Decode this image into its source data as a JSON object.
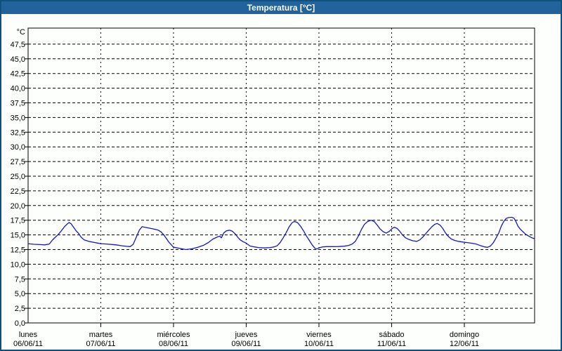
{
  "window": {
    "title": "Temperatura [°C]"
  },
  "colors": {
    "titlebar_bg": "#21639a",
    "titlebar_text": "#ffffff",
    "outer_border": "#10507d",
    "background": "#fdfffc",
    "plot_border": "#000000",
    "grid": "#000000",
    "label_text": "#000000",
    "line": "#1616c8"
  },
  "chart_data": {
    "type": "line",
    "title": "Temperatura [°C]",
    "grid": "dashed",
    "legend": "none",
    "y_axis": {
      "unit_label": "°C",
      "min": 0,
      "max": 49.5,
      "tick_step": 2.5,
      "decimal_style": "comma",
      "tick_labels_bottom_up": [
        "0,0",
        "2,5",
        "5,0",
        "7,5",
        "10,0",
        "12,5",
        "15,0",
        "17,5",
        "20,0",
        "22,5",
        "25,0",
        "27,5",
        "30,0",
        "32,5",
        "35,0",
        "37,5",
        "40,0",
        "42,5",
        "45,0",
        "47,5"
      ]
    },
    "x_axis": {
      "unit": "hours from lunes 00:00, one gridline per day boundary",
      "hours_span": [
        0,
        167.2
      ],
      "days": [
        {
          "name": "lunes",
          "date": "06/06/11"
        },
        {
          "name": "martes",
          "date": "07/06/11"
        },
        {
          "name": "miércoles",
          "date": "08/06/11"
        },
        {
          "name": "jueves",
          "date": "09/06/11"
        },
        {
          "name": "viernes",
          "date": "10/06/11"
        },
        {
          "name": "sábado",
          "date": "11/06/11"
        },
        {
          "name": "domingo",
          "date": "12/06/11"
        }
      ]
    },
    "series": [
      {
        "name": "Temperatura",
        "unit": "°C",
        "points": [
          [
            0,
            13.5
          ],
          [
            2,
            13.4
          ],
          [
            4,
            13.35
          ],
          [
            5.5,
            13.3
          ],
          [
            7,
            13.45
          ],
          [
            8,
            14.1
          ],
          [
            9,
            14.6
          ],
          [
            10,
            15.1
          ],
          [
            11,
            15.7
          ],
          [
            12,
            16.4
          ],
          [
            13,
            16.9
          ],
          [
            13.5,
            17.1
          ],
          [
            14.2,
            16.9
          ],
          [
            15,
            16.3
          ],
          [
            16,
            15.6
          ],
          [
            16.6,
            15.3
          ],
          [
            17.5,
            14.6
          ],
          [
            18.5,
            14.15
          ],
          [
            20,
            13.9
          ],
          [
            22,
            13.7
          ],
          [
            23,
            13.6
          ],
          [
            24,
            13.5
          ],
          [
            26,
            13.45
          ],
          [
            29,
            13.3
          ],
          [
            31,
            13.15
          ],
          [
            32.5,
            13.05
          ],
          [
            33.7,
            13.0
          ],
          [
            34.7,
            13.4
          ],
          [
            35.7,
            14.6
          ],
          [
            36.7,
            15.8
          ],
          [
            37.6,
            16.4
          ],
          [
            39,
            16.25
          ],
          [
            40.5,
            16.1
          ],
          [
            42,
            15.95
          ],
          [
            43,
            15.8
          ],
          [
            43.9,
            15.5
          ],
          [
            44.8,
            15.0
          ],
          [
            45.6,
            14.4
          ],
          [
            46.5,
            13.75
          ],
          [
            47.2,
            13.35
          ],
          [
            47.8,
            13.0
          ],
          [
            48.2,
            12.9
          ],
          [
            50,
            12.7
          ],
          [
            52,
            12.5
          ],
          [
            54,
            12.62
          ],
          [
            56,
            12.9
          ],
          [
            58,
            13.25
          ],
          [
            59.5,
            13.7
          ],
          [
            61,
            14.3
          ],
          [
            62.5,
            14.65
          ],
          [
            63.2,
            14.78
          ],
          [
            63.8,
            14.5
          ],
          [
            64.6,
            15.35
          ],
          [
            65.5,
            15.7
          ],
          [
            66.5,
            15.8
          ],
          [
            67.4,
            15.62
          ],
          [
            68.4,
            15.15
          ],
          [
            69.2,
            14.6
          ],
          [
            70,
            14.15
          ],
          [
            70.9,
            13.85
          ],
          [
            71.9,
            13.62
          ],
          [
            72.6,
            13.35
          ],
          [
            73.3,
            13.1
          ],
          [
            74.2,
            13.0
          ],
          [
            76,
            12.85
          ],
          [
            78,
            12.78
          ],
          [
            80,
            12.85
          ],
          [
            81.2,
            12.95
          ],
          [
            82.2,
            13.15
          ],
          [
            83.2,
            13.7
          ],
          [
            84.2,
            14.5
          ],
          [
            85.2,
            15.4
          ],
          [
            86.2,
            16.4
          ],
          [
            87.1,
            17.05
          ],
          [
            87.9,
            17.3
          ],
          [
            88.9,
            17.1
          ],
          [
            89.9,
            16.5
          ],
          [
            90.9,
            15.7
          ],
          [
            91.9,
            14.8
          ],
          [
            92.9,
            14.0
          ],
          [
            93.9,
            13.2
          ],
          [
            94.7,
            12.72
          ],
          [
            95.3,
            12.6
          ],
          [
            96.2,
            12.82
          ],
          [
            97.2,
            12.95
          ],
          [
            98.5,
            13.0
          ],
          [
            100.5,
            13.0
          ],
          [
            102.5,
            13.02
          ],
          [
            104.3,
            13.08
          ],
          [
            105.8,
            13.2
          ],
          [
            107,
            13.45
          ],
          [
            108,
            13.9
          ],
          [
            109,
            14.8
          ],
          [
            110,
            15.9
          ],
          [
            111,
            16.8
          ],
          [
            112,
            17.25
          ],
          [
            113.2,
            17.5
          ],
          [
            114.3,
            17.25
          ],
          [
            115.2,
            16.7
          ],
          [
            116.2,
            16.0
          ],
          [
            117.2,
            15.55
          ],
          [
            118.2,
            15.3
          ],
          [
            119.2,
            15.6
          ],
          [
            120.2,
            16.1
          ],
          [
            120.9,
            16.3
          ],
          [
            121.8,
            16.1
          ],
          [
            122.7,
            15.6
          ],
          [
            123.6,
            15.0
          ],
          [
            124.6,
            14.5
          ],
          [
            125.8,
            14.2
          ],
          [
            127,
            14.0
          ],
          [
            128.3,
            13.9
          ],
          [
            129.3,
            14.15
          ],
          [
            130.4,
            14.7
          ],
          [
            131.4,
            15.3
          ],
          [
            132.4,
            15.9
          ],
          [
            133.3,
            16.4
          ],
          [
            134.2,
            16.8
          ],
          [
            135,
            16.95
          ],
          [
            135.9,
            16.7
          ],
          [
            136.8,
            16.15
          ],
          [
            137.7,
            15.4
          ],
          [
            138.7,
            14.75
          ],
          [
            139.7,
            14.3
          ],
          [
            140.8,
            14.05
          ],
          [
            142,
            13.9
          ],
          [
            143.5,
            13.78
          ],
          [
            145,
            13.68
          ],
          [
            146.5,
            13.58
          ],
          [
            148,
            13.42
          ],
          [
            149.5,
            13.15
          ],
          [
            150.7,
            12.95
          ],
          [
            151.6,
            12.88
          ],
          [
            152.6,
            13.1
          ],
          [
            153.6,
            13.7
          ],
          [
            154.6,
            14.6
          ],
          [
            155.4,
            15.4
          ],
          [
            156.2,
            16.5
          ],
          [
            157,
            17.3
          ],
          [
            157.8,
            17.8
          ],
          [
            158.6,
            17.95
          ],
          [
            159.6,
            18.0
          ],
          [
            160.4,
            17.85
          ],
          [
            161,
            17.3
          ],
          [
            161.7,
            16.5
          ],
          [
            162.5,
            15.95
          ],
          [
            163.4,
            15.5
          ],
          [
            164.4,
            15.05
          ],
          [
            165.4,
            14.75
          ],
          [
            166.3,
            14.5
          ],
          [
            167.1,
            14.35
          ]
        ]
      }
    ]
  }
}
